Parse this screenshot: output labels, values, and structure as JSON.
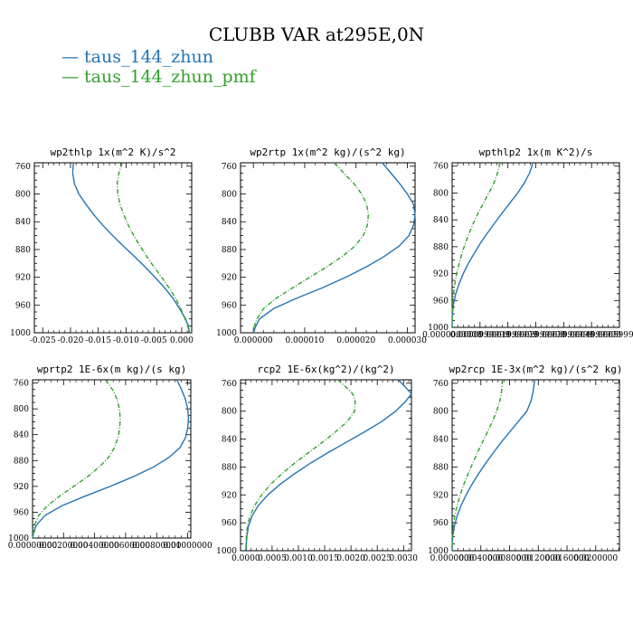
{
  "title": "CLUBB VAR at295E,0N",
  "legend": [
    {
      "name": "taus_144_zhun",
      "color": "#2475b4"
    },
    {
      "name": "taus_144_zhun_pmf",
      "color": "#33a02c"
    }
  ],
  "chart_data": [
    {
      "type": "line",
      "title": "wp2thlp  1x(m^2 K)/s^2",
      "yticks": [
        "760",
        "800",
        "840",
        "880",
        "920",
        "960",
        "1000"
      ],
      "xticks": [
        "-0.025",
        "-0.020",
        "-0.015",
        "-0.010",
        "-0.005",
        "0.000"
      ],
      "xtick_values": [
        -0.025,
        -0.02,
        -0.015,
        -0.01,
        -0.005,
        0.0
      ],
      "xlim": [
        -0.0265,
        0.0018
      ],
      "ylim": [
        755,
        1000
      ],
      "series": [
        {
          "name": "taus_144_zhun",
          "color": "#2475b4",
          "dashed": false,
          "y": [
            755,
            770,
            785,
            800,
            815,
            830,
            845,
            860,
            875,
            890,
            905,
            920,
            935,
            950,
            965,
            980,
            990,
            1000
          ],
          "x": [
            -0.0195,
            -0.0196,
            -0.0193,
            -0.0185,
            -0.0172,
            -0.0158,
            -0.0142,
            -0.0124,
            -0.0105,
            -0.0085,
            -0.0066,
            -0.0048,
            -0.0031,
            -0.0016,
            -0.0004,
            0.0007,
            0.0012,
            0.0014
          ]
        },
        {
          "name": "taus_144_zhun_pmf",
          "color": "#33a02c",
          "dashed": true,
          "y": [
            755,
            770,
            785,
            800,
            815,
            830,
            845,
            860,
            875,
            890,
            905,
            920,
            935,
            950,
            965,
            980,
            990,
            1000
          ],
          "x": [
            -0.0107,
            -0.0113,
            -0.0116,
            -0.0115,
            -0.0111,
            -0.0104,
            -0.0096,
            -0.0086,
            -0.0075,
            -0.0063,
            -0.005,
            -0.0036,
            -0.0023,
            -0.0011,
            -0.0002,
            0.0006,
            0.0011,
            0.0013
          ]
        }
      ]
    },
    {
      "type": "line",
      "title": "wp2rtp  1x(m^2 kg)/(s^2 kg)",
      "yticks": [
        "760",
        "800",
        "840",
        "880",
        "920",
        "960",
        "1000"
      ],
      "xticks": [
        "0.000000",
        "0.000010",
        "0.000020",
        "0.000030"
      ],
      "xtick_values": [
        0.0,
        1e-05,
        2e-05,
        3e-05
      ],
      "xlim": [
        -2.5e-06,
        3.15e-05
      ],
      "ylim": [
        755,
        1000
      ],
      "series": [
        {
          "name": "taus_144_zhun",
          "color": "#2475b4",
          "dashed": false,
          "y": [
            755,
            770,
            785,
            800,
            815,
            830,
            845,
            860,
            875,
            890,
            905,
            920,
            935,
            950,
            965,
            980,
            990,
            1000
          ],
          "x": [
            2.51e-05,
            2.68e-05,
            2.85e-05,
            3e-05,
            3.12e-05,
            3.15e-05,
            3.12e-05,
            3.03e-05,
            2.84e-05,
            2.55e-05,
            2.2e-05,
            1.8e-05,
            1.35e-05,
            8.5e-06,
            4e-06,
            1.2e-06,
            5e-07,
            0.0
          ]
        },
        {
          "name": "taus_144_zhun_pmf",
          "color": "#33a02c",
          "dashed": true,
          "y": [
            755,
            770,
            785,
            800,
            815,
            830,
            845,
            860,
            875,
            890,
            905,
            920,
            935,
            950,
            965,
            980,
            990,
            1000
          ],
          "x": [
            1.58e-05,
            1.76e-05,
            1.96e-05,
            2.11e-05,
            2.21e-05,
            2.24e-05,
            2.22e-05,
            2.14e-05,
            1.98e-05,
            1.73e-05,
            1.43e-05,
            1.1e-05,
            7.7e-06,
            4.5e-06,
            2e-06,
            7e-07,
            2e-07,
            0.0
          ]
        }
      ]
    },
    {
      "type": "line",
      "title": "wpthlp2  1x(m K^2)/s",
      "yticks": [
        "760",
        "800",
        "840",
        "880",
        "920",
        "960",
        "1000"
      ],
      "xticks": [
        "0.0000000000",
        "0.0000999999",
        "0.0001999999",
        "0.0002999999",
        "0.0003999999",
        "0.0004999999",
        "0.0005999999"
      ],
      "xtick_values": [
        0.0,
        9.99999e-05,
        0.0001999999,
        0.0002999999,
        0.0003999999,
        0.0004999999,
        0.0005999999
      ],
      "xlim": [
        0.0,
        0.0006
      ],
      "ylim": [
        755,
        1000
      ],
      "series": [
        {
          "name": "taus_144_zhun",
          "color": "#2475b4",
          "dashed": false,
          "y": [
            755,
            770,
            785,
            800,
            815,
            830,
            845,
            860,
            875,
            890,
            905,
            920,
            935,
            950,
            965,
            980,
            990,
            1000
          ],
          "x": [
            0.00029,
            0.000278,
            0.000259,
            0.000235,
            0.000207,
            0.000179,
            0.000152,
            0.000126,
            0.000101,
            7.9e-05,
            5.8e-05,
            4e-05,
            2.5e-05,
            1.3e-05,
            5e-06,
            1e-06,
            3e-07,
            0.0
          ]
        },
        {
          "name": "taus_144_zhun_pmf",
          "color": "#33a02c",
          "dashed": true,
          "y": [
            755,
            770,
            785,
            800,
            815,
            830,
            845,
            860,
            875,
            890,
            905,
            920,
            935,
            950,
            965,
            980,
            990,
            1000
          ],
          "x": [
            0.000172,
            0.000163,
            0.00015,
            0.000132,
            0.000112,
            9.3e-05,
            7.6e-05,
            6.1e-05,
            4.7e-05,
            3.5e-05,
            2.5e-05,
            1.6e-05,
            1e-05,
            5e-06,
            2e-06,
            6e-07,
            2e-07,
            0.0
          ]
        }
      ]
    },
    {
      "type": "line",
      "title": "wprtp2  1E-6x(m kg)/(s kg)",
      "yticks": [
        "760",
        "800",
        "840",
        "880",
        "920",
        "960",
        "1000"
      ],
      "xticks": [
        "0.00000000",
        "0.00200000",
        "0.00400000",
        "0.00600000",
        "0.00800000",
        "0.01000000"
      ],
      "xtick_values": [
        0.0,
        0.002,
        0.004,
        0.006,
        0.008,
        0.01
      ],
      "xlim": [
        0.0,
        0.0102
      ],
      "ylim": [
        755,
        1000
      ],
      "series": [
        {
          "name": "taus_144_zhun",
          "color": "#2475b4",
          "dashed": false,
          "y": [
            755,
            770,
            785,
            800,
            815,
            830,
            845,
            860,
            875,
            890,
            905,
            920,
            935,
            950,
            965,
            980,
            990,
            1000
          ],
          "x": [
            0.0093,
            0.0096,
            0.00985,
            0.01,
            0.01005,
            0.01,
            0.00985,
            0.0095,
            0.0088,
            0.0078,
            0.0065,
            0.005,
            0.0034,
            0.0019,
            0.0008,
            0.00025,
            8e-05,
            0.0
          ]
        },
        {
          "name": "taus_144_zhun_pmf",
          "color": "#33a02c",
          "dashed": true,
          "y": [
            755,
            770,
            785,
            800,
            815,
            830,
            845,
            860,
            875,
            890,
            905,
            920,
            935,
            950,
            965,
            980,
            990,
            1000
          ],
          "x": [
            0.0047,
            0.00515,
            0.00545,
            0.0056,
            0.00565,
            0.00562,
            0.0055,
            0.00528,
            0.0049,
            0.0043,
            0.00355,
            0.00265,
            0.00175,
            0.00095,
            0.0004,
            0.00012,
            4e-05,
            0.0
          ]
        }
      ]
    },
    {
      "type": "line",
      "title": "rcp2  1E-6x(kg^2)/(kg^2)",
      "yticks": [
        "760",
        "800",
        "840",
        "880",
        "920",
        "960",
        "1000"
      ],
      "xticks": [
        "0.0000",
        "0.0005",
        "0.0010",
        "0.0015",
        "0.0020",
        "0.0025",
        "0.0030"
      ],
      "xtick_values": [
        0.0,
        0.0005,
        0.001,
        0.0015,
        0.002,
        0.0025,
        0.003
      ],
      "xlim": [
        -0.0001,
        0.00315
      ],
      "ylim": [
        755,
        1000
      ],
      "series": [
        {
          "name": "taus_144_zhun",
          "color": "#2475b4",
          "dashed": false,
          "y": [
            755,
            765,
            775,
            785,
            800,
            815,
            830,
            845,
            860,
            875,
            890,
            905,
            920,
            935,
            950,
            965,
            980,
            990,
            1000
          ],
          "x": [
            0.0029,
            0.00303,
            0.00315,
            0.00305,
            0.00285,
            0.00258,
            0.00225,
            0.0019,
            0.00155,
            0.00122,
            0.00092,
            0.00065,
            0.00042,
            0.00024,
            0.00012,
            5e-05,
            2e-05,
            1e-05,
            1e-05
          ]
        },
        {
          "name": "taus_144_zhun_pmf",
          "color": "#33a02c",
          "dashed": true,
          "y": [
            755,
            765,
            775,
            785,
            800,
            815,
            830,
            845,
            860,
            875,
            890,
            905,
            920,
            935,
            950,
            965,
            980,
            990,
            1000
          ],
          "x": [
            0.00175,
            0.0019,
            0.00203,
            0.00208,
            0.00207,
            0.00193,
            0.0017,
            0.00145,
            0.00118,
            0.00092,
            0.00068,
            0.00047,
            0.0003,
            0.00017,
            8e-05,
            3e-05,
            1e-05,
            5e-06,
            5e-06
          ]
        }
      ]
    },
    {
      "type": "line",
      "title": "wp2rcp  1E-3x(m^2 kg)/(s^2 kg)",
      "yticks": [
        "760",
        "800",
        "840",
        "880",
        "920",
        "960",
        "1000"
      ],
      "xticks": [
        "0.0000000",
        "0.0040000",
        "0.0080000",
        "0.0120000",
        "0.0160000",
        "0.0200000"
      ],
      "xtick_values": [
        0.0,
        0.004,
        0.008,
        0.012,
        0.016,
        0.02
      ],
      "xlim": [
        0.0,
        0.0233
      ],
      "ylim": [
        755,
        1000
      ],
      "series": [
        {
          "name": "taus_144_zhun",
          "color": "#2475b4",
          "dashed": false,
          "y": [
            755,
            770,
            785,
            800,
            815,
            830,
            845,
            860,
            875,
            890,
            905,
            920,
            935,
            950,
            965,
            980,
            990,
            1000
          ],
          "x": [
            0.0115,
            0.0113,
            0.011,
            0.0104,
            0.0092,
            0.008,
            0.0068,
            0.0057,
            0.00465,
            0.00365,
            0.00275,
            0.00195,
            0.00125,
            0.0007,
            0.0003,
            8e-05,
            2e-05,
            0.0
          ]
        },
        {
          "name": "taus_144_zhun_pmf",
          "color": "#33a02c",
          "dashed": true,
          "y": [
            755,
            770,
            785,
            800,
            815,
            830,
            845,
            860,
            875,
            890,
            905,
            920,
            935,
            950,
            965,
            980,
            990,
            1000
          ],
          "x": [
            0.007,
            0.0069,
            0.00665,
            0.0062,
            0.0056,
            0.0049,
            0.0042,
            0.0035,
            0.00285,
            0.0022,
            0.00162,
            0.00112,
            0.0007,
            0.00037,
            0.00015,
            4e-05,
            1e-05,
            0.0
          ]
        }
      ]
    }
  ]
}
